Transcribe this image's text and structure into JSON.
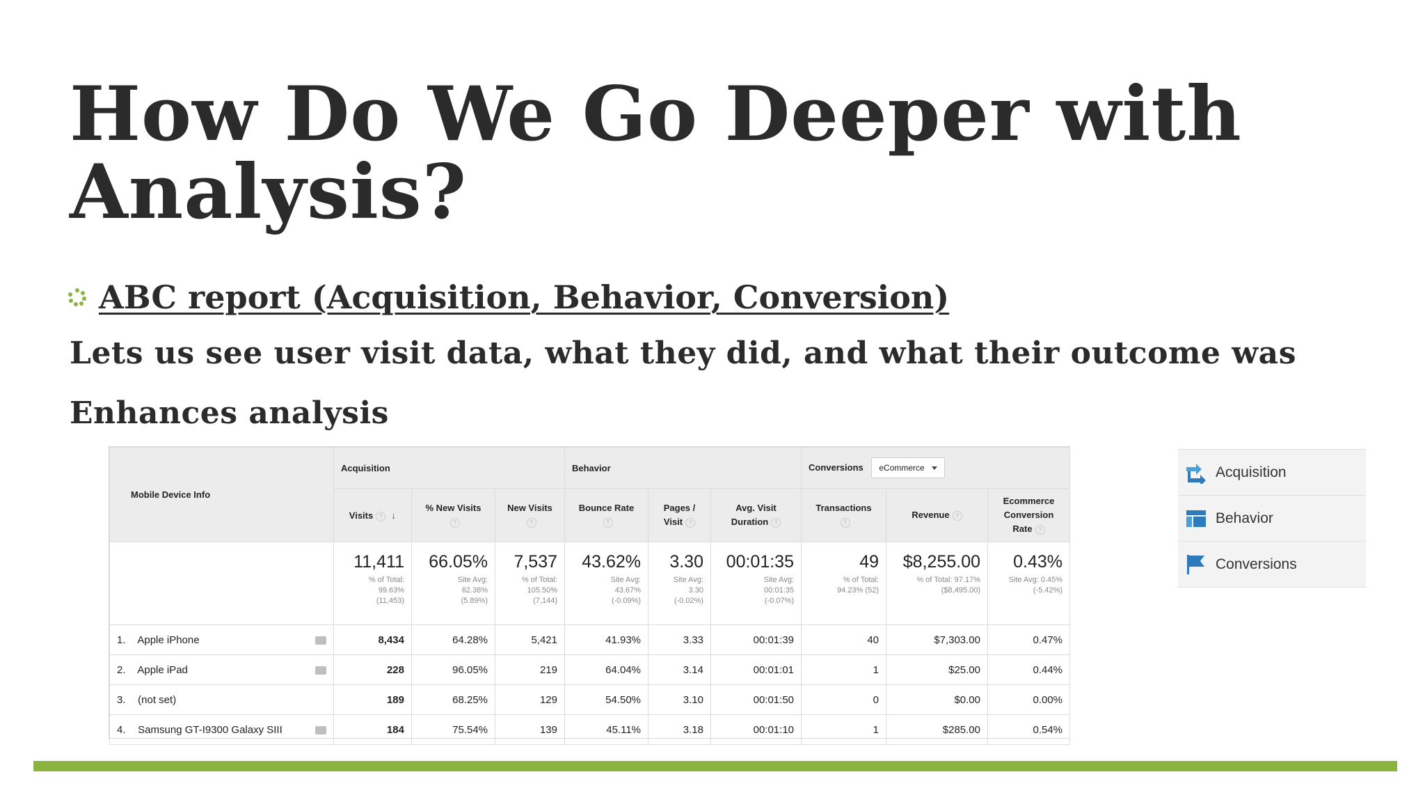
{
  "slide": {
    "title": "How Do We Go Deeper with Analysis?",
    "bullet": "ABC report (Acquisition, Behavior, Conversion)",
    "line1": "Lets us see user visit data, what they did, and what their outcome was",
    "line2": "Enhances analysis",
    "accent_color": "#8ab43d"
  },
  "report": {
    "dimension_header": "Mobile Device Info",
    "groups": {
      "acquisition": "Acquisition",
      "behavior": "Behavior",
      "conversions": "Conversions",
      "conversions_select": "eCommerce"
    },
    "columns": {
      "visits": "Visits",
      "pct_new_visits": "% New Visits",
      "new_visits": "New Visits",
      "bounce_rate": "Bounce Rate",
      "pages_visit_1": "Pages /",
      "pages_visit_2": "Visit",
      "avg_duration_1": "Avg. Visit",
      "avg_duration_2": "Duration",
      "transactions": "Transactions",
      "revenue": "Revenue",
      "ecr_1": "Ecommerce",
      "ecr_2": "Conversion",
      "ecr_3": "Rate"
    },
    "totals": {
      "visits": {
        "value": "11,411",
        "sub1": "% of Total:",
        "sub2": "99.63%",
        "sub3": "(11,453)"
      },
      "pct_new_visits": {
        "value": "66.05%",
        "sub1": "Site Avg:",
        "sub2": "62.38%",
        "sub3": "(5.89%)"
      },
      "new_visits": {
        "value": "7,537",
        "sub1": "% of Total:",
        "sub2": "105.50%",
        "sub3": "(7,144)"
      },
      "bounce_rate": {
        "value": "43.62%",
        "sub1": "Site Avg:",
        "sub2": "43.67%",
        "sub3": "(-0.09%)"
      },
      "pages_visit": {
        "value": "3.30",
        "sub1": "Site Avg:",
        "sub2": "3.30",
        "sub3": "(-0.02%)"
      },
      "avg_duration": {
        "value": "00:01:35",
        "sub1": "Site Avg:",
        "sub2": "00:01:35",
        "sub3": "(-0.07%)"
      },
      "transactions": {
        "value": "49",
        "sub1": "% of Total:",
        "sub2": "94.23% (52)",
        "sub3": ""
      },
      "revenue": {
        "value": "$8,255.00",
        "sub1": "% of Total: 97.17%",
        "sub2": "($8,495.00)",
        "sub3": ""
      },
      "ecr": {
        "value": "0.43%",
        "sub1": "Site Avg: 0.45%",
        "sub2": "(-5.42%)",
        "sub3": ""
      }
    },
    "rows": [
      {
        "num": "1.",
        "device": "Apple iPhone",
        "visits": "8,434",
        "pct_new": "64.28%",
        "new_visits": "5,421",
        "bounce": "41.93%",
        "pages": "3.33",
        "duration": "00:01:39",
        "transactions": "40",
        "revenue": "$7,303.00",
        "ecr": "0.47%"
      },
      {
        "num": "2.",
        "device": "Apple iPad",
        "visits": "228",
        "pct_new": "96.05%",
        "new_visits": "219",
        "bounce": "64.04%",
        "pages": "3.14",
        "duration": "00:01:01",
        "transactions": "1",
        "revenue": "$25.00",
        "ecr": "0.44%"
      },
      {
        "num": "3.",
        "device": "(not set)",
        "visits": "189",
        "pct_new": "68.25%",
        "new_visits": "129",
        "bounce": "54.50%",
        "pages": "3.10",
        "duration": "00:01:50",
        "transactions": "0",
        "revenue": "$0.00",
        "ecr": "0.00%"
      },
      {
        "num": "4.",
        "device": "Samsung GT-I9300 Galaxy SIII",
        "visits": "184",
        "pct_new": "75.54%",
        "new_visits": "139",
        "bounce": "45.11%",
        "pages": "3.18",
        "duration": "00:01:10",
        "transactions": "1",
        "revenue": "$285.00",
        "ecr": "0.54%"
      }
    ]
  },
  "side_panel": {
    "items": [
      {
        "label": "Acquisition",
        "icon": "acquisition-arrows-icon"
      },
      {
        "label": "Behavior",
        "icon": "behavior-layout-icon"
      },
      {
        "label": "Conversions",
        "icon": "conversions-flag-icon"
      }
    ]
  }
}
